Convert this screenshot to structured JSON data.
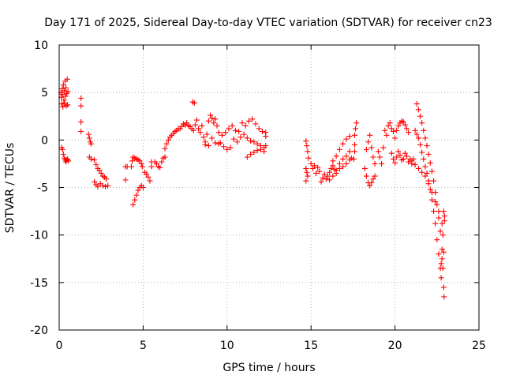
{
  "chart_data": {
    "type": "scatter",
    "title": "Day 171 of 2025, Sidereal Day-to-day VTEC variation (SDTVAR) for receiver cn23",
    "xlabel": "GPS time / hours",
    "ylabel": "SDTVAR / TECUs",
    "xlim": [
      0,
      25
    ],
    "ylim": [
      -20,
      10
    ],
    "xticks": [
      0,
      5,
      10,
      15,
      20,
      25
    ],
    "yticks": [
      -20,
      -15,
      -10,
      -5,
      0,
      5,
      10
    ],
    "xtick_labels": [
      "0",
      "5",
      "10",
      "15",
      "20",
      "25"
    ],
    "ytick_labels": [
      "-20",
      "-15",
      "-10",
      "-5",
      "0",
      "5",
      "10"
    ],
    "grid": true,
    "marker": "plus",
    "series_color": "#ff0000",
    "series": [
      {
        "name": "SDTVAR",
        "points": [
          [
            0.1,
            5.0
          ],
          [
            0.12,
            4.5
          ],
          [
            0.15,
            3.8
          ],
          [
            0.18,
            5.4
          ],
          [
            0.2,
            4.8
          ],
          [
            0.22,
            3.5
          ],
          [
            0.25,
            5.8
          ],
          [
            0.28,
            4.2
          ],
          [
            0.3,
            5.2
          ],
          [
            0.32,
            3.9
          ],
          [
            0.35,
            6.2
          ],
          [
            0.38,
            4.6
          ],
          [
            0.4,
            5.5
          ],
          [
            0.42,
            3.6
          ],
          [
            0.45,
            4.9
          ],
          [
            0.48,
            6.4
          ],
          [
            0.5,
            3.7
          ],
          [
            0.52,
            5.1
          ],
          [
            0.15,
            -0.8
          ],
          [
            0.2,
            -1.0
          ],
          [
            0.25,
            -1.5
          ],
          [
            0.3,
            -1.9
          ],
          [
            0.35,
            -2.1
          ],
          [
            0.4,
            -2.3
          ],
          [
            0.45,
            -2.1
          ],
          [
            0.5,
            -2.0
          ],
          [
            0.55,
            -2.2
          ],
          [
            1.3,
            4.4
          ],
          [
            1.3,
            3.6
          ],
          [
            1.3,
            1.9
          ],
          [
            1.3,
            0.9
          ],
          [
            1.75,
            0.6
          ],
          [
            1.8,
            0.2
          ],
          [
            1.85,
            -0.2
          ],
          [
            1.9,
            -0.4
          ],
          [
            1.8,
            -1.8
          ],
          [
            1.9,
            -2.0
          ],
          [
            2.1,
            -2.1
          ],
          [
            2.2,
            -2.6
          ],
          [
            2.3,
            -3.0
          ],
          [
            2.4,
            -3.2
          ],
          [
            2.5,
            -3.5
          ],
          [
            2.6,
            -3.8
          ],
          [
            2.7,
            -3.9
          ],
          [
            2.8,
            -4.1
          ],
          [
            2.1,
            -4.4
          ],
          [
            2.2,
            -4.7
          ],
          [
            2.3,
            -4.9
          ],
          [
            2.45,
            -4.6
          ],
          [
            2.6,
            -4.8
          ],
          [
            2.75,
            -4.9
          ],
          [
            2.9,
            -4.8
          ],
          [
            3.95,
            -2.8
          ],
          [
            4.05,
            -2.8
          ],
          [
            3.95,
            -4.2
          ],
          [
            4.3,
            -2.8
          ],
          [
            4.35,
            -2.2
          ],
          [
            4.4,
            -1.8
          ],
          [
            4.5,
            -1.9
          ],
          [
            4.6,
            -2.0
          ],
          [
            4.7,
            -2.1
          ],
          [
            4.8,
            -2.2
          ],
          [
            4.9,
            -2.5
          ],
          [
            4.95,
            -2.8
          ],
          [
            4.4,
            -6.8
          ],
          [
            4.5,
            -6.3
          ],
          [
            4.6,
            -5.8
          ],
          [
            4.7,
            -5.3
          ],
          [
            4.8,
            -5.0
          ],
          [
            4.9,
            -4.8
          ],
          [
            5.0,
            -5.0
          ],
          [
            5.1,
            -3.4
          ],
          [
            5.2,
            -3.6
          ],
          [
            5.3,
            -3.9
          ],
          [
            5.4,
            -4.3
          ],
          [
            5.5,
            -2.8
          ],
          [
            5.5,
            -2.3
          ],
          [
            5.7,
            -2.3
          ],
          [
            5.8,
            -2.5
          ],
          [
            5.9,
            -2.8
          ],
          [
            6.0,
            -2.9
          ],
          [
            6.1,
            -2.3
          ],
          [
            6.2,
            -1.9
          ],
          [
            6.3,
            -1.8
          ],
          [
            6.3,
            -0.9
          ],
          [
            6.4,
            -0.4
          ],
          [
            6.5,
            0.0
          ],
          [
            6.6,
            0.3
          ],
          [
            6.7,
            0.5
          ],
          [
            6.8,
            0.7
          ],
          [
            6.9,
            0.9
          ],
          [
            7.0,
            1.0
          ],
          [
            7.1,
            1.2
          ],
          [
            7.2,
            1.2
          ],
          [
            7.3,
            1.4
          ],
          [
            7.4,
            1.7
          ],
          [
            7.5,
            1.6
          ],
          [
            7.6,
            1.8
          ],
          [
            7.7,
            1.5
          ],
          [
            7.8,
            1.4
          ],
          [
            7.9,
            1.2
          ],
          [
            7.95,
            4.0
          ],
          [
            8.05,
            3.9
          ],
          [
            8.0,
            1.0
          ],
          [
            8.1,
            1.6
          ],
          [
            8.2,
            2.1
          ],
          [
            8.3,
            1.2
          ],
          [
            8.4,
            0.8
          ],
          [
            8.5,
            1.5
          ],
          [
            8.6,
            0.3
          ],
          [
            8.7,
            -0.2
          ],
          [
            8.8,
            0.6
          ],
          [
            8.9,
            2.0
          ],
          [
            9.0,
            2.6
          ],
          [
            9.1,
            2.3
          ],
          [
            9.2,
            1.8
          ],
          [
            9.3,
            2.2
          ],
          [
            9.4,
            1.5
          ],
          [
            9.5,
            0.8
          ],
          [
            8.7,
            -0.5
          ],
          [
            8.9,
            -0.6
          ],
          [
            9.1,
            0.2
          ],
          [
            9.3,
            -0.3
          ],
          [
            9.5,
            -0.4
          ],
          [
            9.7,
            0.5
          ],
          [
            9.9,
            0.8
          ],
          [
            10.1,
            1.2
          ],
          [
            10.3,
            1.5
          ],
          [
            10.5,
            1.0
          ],
          [
            10.7,
            0.9
          ],
          [
            10.9,
            1.8
          ],
          [
            11.1,
            1.5
          ],
          [
            11.3,
            2.0
          ],
          [
            11.5,
            2.2
          ],
          [
            11.7,
            1.7
          ],
          [
            11.9,
            1.2
          ],
          [
            12.1,
            0.9
          ],
          [
            12.3,
            0.8
          ],
          [
            9.6,
            -0.3
          ],
          [
            9.8,
            -0.7
          ],
          [
            10.0,
            -1.0
          ],
          [
            10.2,
            -0.8
          ],
          [
            10.4,
            0.1
          ],
          [
            10.6,
            -0.2
          ],
          [
            10.8,
            0.3
          ],
          [
            11.0,
            0.6
          ],
          [
            11.2,
            0.2
          ],
          [
            11.4,
            -0.1
          ],
          [
            11.6,
            -0.2
          ],
          [
            11.8,
            -0.4
          ],
          [
            12.0,
            -0.6
          ],
          [
            12.2,
            -0.8
          ],
          [
            11.2,
            -1.8
          ],
          [
            11.4,
            -1.5
          ],
          [
            11.6,
            -1.3
          ],
          [
            11.8,
            -1.1
          ],
          [
            12.0,
            -1.0
          ],
          [
            12.2,
            -1.2
          ],
          [
            12.3,
            -0.6
          ],
          [
            12.3,
            0.4
          ],
          [
            14.7,
            -0.1
          ],
          [
            14.75,
            -0.6
          ],
          [
            14.8,
            -1.2
          ],
          [
            14.85,
            -1.9
          ],
          [
            14.7,
            -3.0
          ],
          [
            14.75,
            -3.4
          ],
          [
            14.8,
            -3.8
          ],
          [
            14.7,
            -4.3
          ],
          [
            15.0,
            -2.5
          ],
          [
            15.1,
            -3.0
          ],
          [
            15.2,
            -2.7
          ],
          [
            15.3,
            -3.5
          ],
          [
            15.4,
            -2.9
          ],
          [
            15.5,
            -3.3
          ],
          [
            15.6,
            -4.4
          ],
          [
            15.7,
            -4.0
          ],
          [
            15.8,
            -3.6
          ],
          [
            15.9,
            -4.1
          ],
          [
            16.0,
            -3.8
          ],
          [
            16.1,
            -3.4
          ],
          [
            16.2,
            -3.0
          ],
          [
            16.3,
            -2.7
          ],
          [
            16.4,
            -3.1
          ],
          [
            16.1,
            -4.2
          ],
          [
            16.3,
            -3.8
          ],
          [
            16.5,
            -3.2
          ],
          [
            16.7,
            -2.5
          ],
          [
            16.9,
            -2.0
          ],
          [
            17.1,
            -1.7
          ],
          [
            17.3,
            -1.2
          ],
          [
            16.3,
            -2.2
          ],
          [
            16.5,
            -1.7
          ],
          [
            16.7,
            -1.0
          ],
          [
            16.9,
            -0.4
          ],
          [
            17.1,
            0.1
          ],
          [
            17.3,
            0.4
          ],
          [
            16.5,
            -3.5
          ],
          [
            16.7,
            -3.0
          ],
          [
            16.9,
            -2.8
          ],
          [
            17.1,
            -2.5
          ],
          [
            17.3,
            -2.1
          ],
          [
            17.4,
            -1.9
          ],
          [
            17.6,
            -1.2
          ],
          [
            17.6,
            -0.5
          ],
          [
            17.6,
            0.5
          ],
          [
            17.65,
            1.2
          ],
          [
            17.7,
            1.8
          ],
          [
            17.55,
            -2.0
          ],
          [
            18.2,
            -3.0
          ],
          [
            18.3,
            -3.8
          ],
          [
            18.4,
            -4.5
          ],
          [
            18.5,
            -4.8
          ],
          [
            18.6,
            -4.5
          ],
          [
            18.7,
            -4.1
          ],
          [
            18.8,
            -3.8
          ],
          [
            18.3,
            -1.0
          ],
          [
            18.4,
            -0.2
          ],
          [
            18.5,
            0.5
          ],
          [
            18.6,
            -0.8
          ],
          [
            18.7,
            -1.8
          ],
          [
            18.8,
            -2.5
          ],
          [
            19.0,
            -1.2
          ],
          [
            19.1,
            -1.8
          ],
          [
            19.2,
            -2.5
          ],
          [
            19.3,
            -0.8
          ],
          [
            19.4,
            1.0
          ],
          [
            19.5,
            0.5
          ],
          [
            19.6,
            1.5
          ],
          [
            19.7,
            1.8
          ],
          [
            19.8,
            1.2
          ],
          [
            19.9,
            0.9
          ],
          [
            20.0,
            0.2
          ],
          [
            20.1,
            1.0
          ],
          [
            20.2,
            1.5
          ],
          [
            20.3,
            1.8
          ],
          [
            20.4,
            2.0
          ],
          [
            20.5,
            1.9
          ],
          [
            20.6,
            1.6
          ],
          [
            20.7,
            1.2
          ],
          [
            20.8,
            0.8
          ],
          [
            19.8,
            -1.4
          ],
          [
            19.9,
            -2.0
          ],
          [
            20.0,
            -2.4
          ],
          [
            20.1,
            -1.8
          ],
          [
            20.2,
            -1.2
          ],
          [
            20.3,
            -1.6
          ],
          [
            20.4,
            -2.1
          ],
          [
            20.5,
            -2.0
          ],
          [
            20.6,
            -1.4
          ],
          [
            20.7,
            -1.7
          ],
          [
            20.8,
            -2.3
          ],
          [
            20.9,
            -2.0
          ],
          [
            21.0,
            -2.5
          ],
          [
            21.1,
            -2.0
          ],
          [
            21.3,
            3.8
          ],
          [
            21.4,
            3.2
          ],
          [
            21.5,
            2.5
          ],
          [
            21.6,
            1.8
          ],
          [
            21.7,
            1.0
          ],
          [
            21.8,
            0.2
          ],
          [
            21.9,
            -0.6
          ],
          [
            22.0,
            -1.5
          ],
          [
            22.1,
            -2.4
          ],
          [
            22.2,
            -3.3
          ],
          [
            22.3,
            -4.3
          ],
          [
            22.4,
            -5.5
          ],
          [
            22.5,
            -6.8
          ],
          [
            22.6,
            -8.2
          ],
          [
            22.7,
            -9.6
          ],
          [
            22.8,
            -11.5
          ],
          [
            22.85,
            -13.5
          ],
          [
            22.9,
            -15.5
          ],
          [
            22.92,
            -16.5
          ],
          [
            21.2,
            1.0
          ],
          [
            21.3,
            0.6
          ],
          [
            21.4,
            0.2
          ],
          [
            21.5,
            -0.5
          ],
          [
            21.6,
            -1.3
          ],
          [
            21.7,
            -2.0
          ],
          [
            21.8,
            -2.8
          ],
          [
            21.9,
            -3.5
          ],
          [
            22.0,
            -4.3
          ],
          [
            22.1,
            -5.2
          ],
          [
            22.2,
            -6.3
          ],
          [
            22.3,
            -7.5
          ],
          [
            22.4,
            -8.8
          ],
          [
            22.5,
            -10.5
          ],
          [
            22.6,
            -12.0
          ],
          [
            22.7,
            -13.5
          ],
          [
            22.75,
            -14.5
          ],
          [
            21.0,
            -2.2
          ],
          [
            21.2,
            -2.6
          ],
          [
            21.4,
            -3.0
          ],
          [
            21.6,
            -3.4
          ],
          [
            21.8,
            -3.8
          ],
          [
            22.0,
            -4.6
          ],
          [
            22.2,
            -5.5
          ],
          [
            22.4,
            -6.5
          ],
          [
            22.6,
            -7.5
          ],
          [
            22.8,
            -8.8
          ],
          [
            22.95,
            -8.5
          ],
          [
            22.9,
            -7.5
          ],
          [
            22.95,
            -8.0
          ],
          [
            22.85,
            -10.0
          ],
          [
            22.9,
            -11.8
          ],
          [
            22.8,
            -12.5
          ],
          [
            22.75,
            -13.0
          ]
        ]
      }
    ]
  }
}
